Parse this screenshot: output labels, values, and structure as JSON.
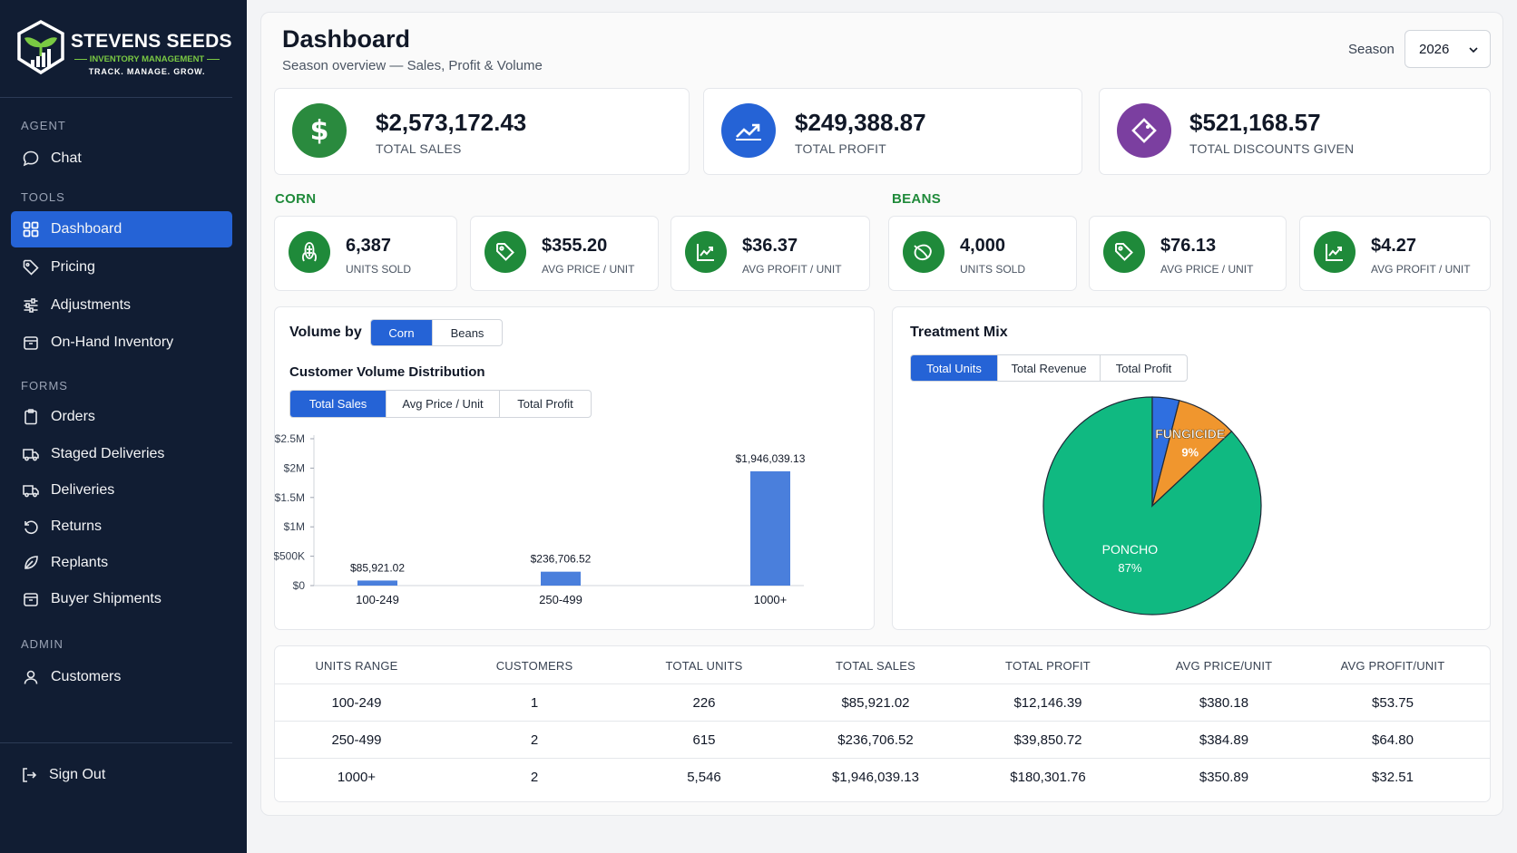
{
  "brand": {
    "name": "STEVENS SEEDS",
    "subtitle": "INVENTORY MANAGEMENT",
    "tagline": "TRACK.  MANAGE.  GROW."
  },
  "sidebar": {
    "sections": [
      {
        "title": "AGENT",
        "items": [
          {
            "label": "Chat",
            "icon": "chat-icon"
          }
        ]
      },
      {
        "title": "TOOLS",
        "items": [
          {
            "label": "Dashboard",
            "icon": "grid-icon",
            "active": true
          },
          {
            "label": "Pricing",
            "icon": "tag-icon"
          },
          {
            "label": "Adjustments",
            "icon": "sliders-icon"
          },
          {
            "label": "On-Hand Inventory",
            "icon": "box-icon"
          }
        ]
      },
      {
        "title": "FORMS",
        "items": [
          {
            "label": "Orders",
            "icon": "clipboard-icon"
          },
          {
            "label": "Staged Deliveries",
            "icon": "truck-icon"
          },
          {
            "label": "Deliveries",
            "icon": "truck-icon"
          },
          {
            "label": "Returns",
            "icon": "undo-icon"
          },
          {
            "label": "Replants",
            "icon": "leaf-icon"
          },
          {
            "label": "Buyer Shipments",
            "icon": "box-icon"
          }
        ]
      },
      {
        "title": "ADMIN",
        "items": [
          {
            "label": "Customers",
            "icon": "user-icon"
          }
        ]
      }
    ],
    "sign_out": "Sign Out"
  },
  "header": {
    "title": "Dashboard",
    "subtitle": "Season overview — Sales, Profit & Volume",
    "season_label": "Season",
    "season_value": "2026"
  },
  "summary": [
    {
      "value": "$2,573,172.43",
      "label": "TOTAL SALES",
      "icon": "dollar-icon",
      "color": "#2a8a3e"
    },
    {
      "value": "$249,388.87",
      "label": "TOTAL PROFIT",
      "icon": "trend-up-icon",
      "color": "#2563d6"
    },
    {
      "value": "$521,168.57",
      "label": "TOTAL DISCOUNTS GIVEN",
      "icon": "discount-tag-icon",
      "color": "#7b3fa0"
    }
  ],
  "corn": {
    "title": "CORN",
    "metrics": [
      {
        "value": "6,387",
        "label": "UNITS SOLD",
        "icon": "corn-icon"
      },
      {
        "value": "$355.20",
        "label": "AVG PRICE / UNIT",
        "icon": "tag-icon"
      },
      {
        "value": "$36.37",
        "label": "AVG PROFIT / UNIT",
        "icon": "chart-up-icon"
      }
    ]
  },
  "beans": {
    "title": "BEANS",
    "metrics": [
      {
        "value": "4,000",
        "label": "UNITS SOLD",
        "icon": "bean-icon"
      },
      {
        "value": "$76.13",
        "label": "AVG PRICE / UNIT",
        "icon": "tag-icon"
      },
      {
        "value": "$4.27",
        "label": "AVG PROFIT / UNIT",
        "icon": "chart-up-icon"
      }
    ]
  },
  "volume": {
    "label": "Volume by",
    "crop_tabs": [
      "Corn",
      "Beans"
    ],
    "chart_title": "Customer Volume Distribution",
    "metric_tabs": [
      "Total Sales",
      "Avg Price / Unit",
      "Total Profit"
    ]
  },
  "treatment": {
    "title": "Treatment Mix",
    "tabs": [
      "Total Units",
      "Total Revenue",
      "Total Profit"
    ]
  },
  "chart_data": [
    {
      "type": "bar",
      "categories": [
        "100-249",
        "250-499",
        "1000+"
      ],
      "values": [
        85921.02,
        236706.52,
        1946039.13
      ],
      "value_labels": [
        "$85,921.02",
        "$236,706.52",
        "$1,946,039.13"
      ],
      "yticks": [
        "$0",
        "$500K",
        "$1M",
        "$1.5M",
        "$2M",
        "$2.5M"
      ],
      "ylim": [
        0,
        2500000
      ],
      "color": "#4a7fdc",
      "grid": false
    },
    {
      "type": "pie",
      "slices": [
        {
          "label": "PONCHO",
          "pct_label": "87%",
          "value": 87,
          "color": "#10b981"
        },
        {
          "label": "",
          "pct_label": "",
          "value": 4,
          "color": "#2f6fe0"
        },
        {
          "label": "FUNGICIDE",
          "pct_label": "9%",
          "value": 9,
          "color": "#f0962e"
        }
      ]
    }
  ],
  "table": {
    "headers": [
      "UNITS RANGE",
      "CUSTOMERS",
      "TOTAL UNITS",
      "TOTAL SALES",
      "TOTAL PROFIT",
      "AVG PRICE/UNIT",
      "AVG PROFIT/UNIT"
    ],
    "rows": [
      [
        "100-249",
        "1",
        "226",
        "$85,921.02",
        "$12,146.39",
        "$380.18",
        "$53.75"
      ],
      [
        "250-499",
        "2",
        "615",
        "$236,706.52",
        "$39,850.72",
        "$384.89",
        "$64.80"
      ],
      [
        "1000+",
        "2",
        "5,546",
        "$1,946,039.13",
        "$180,301.76",
        "$350.89",
        "$32.51"
      ]
    ]
  }
}
